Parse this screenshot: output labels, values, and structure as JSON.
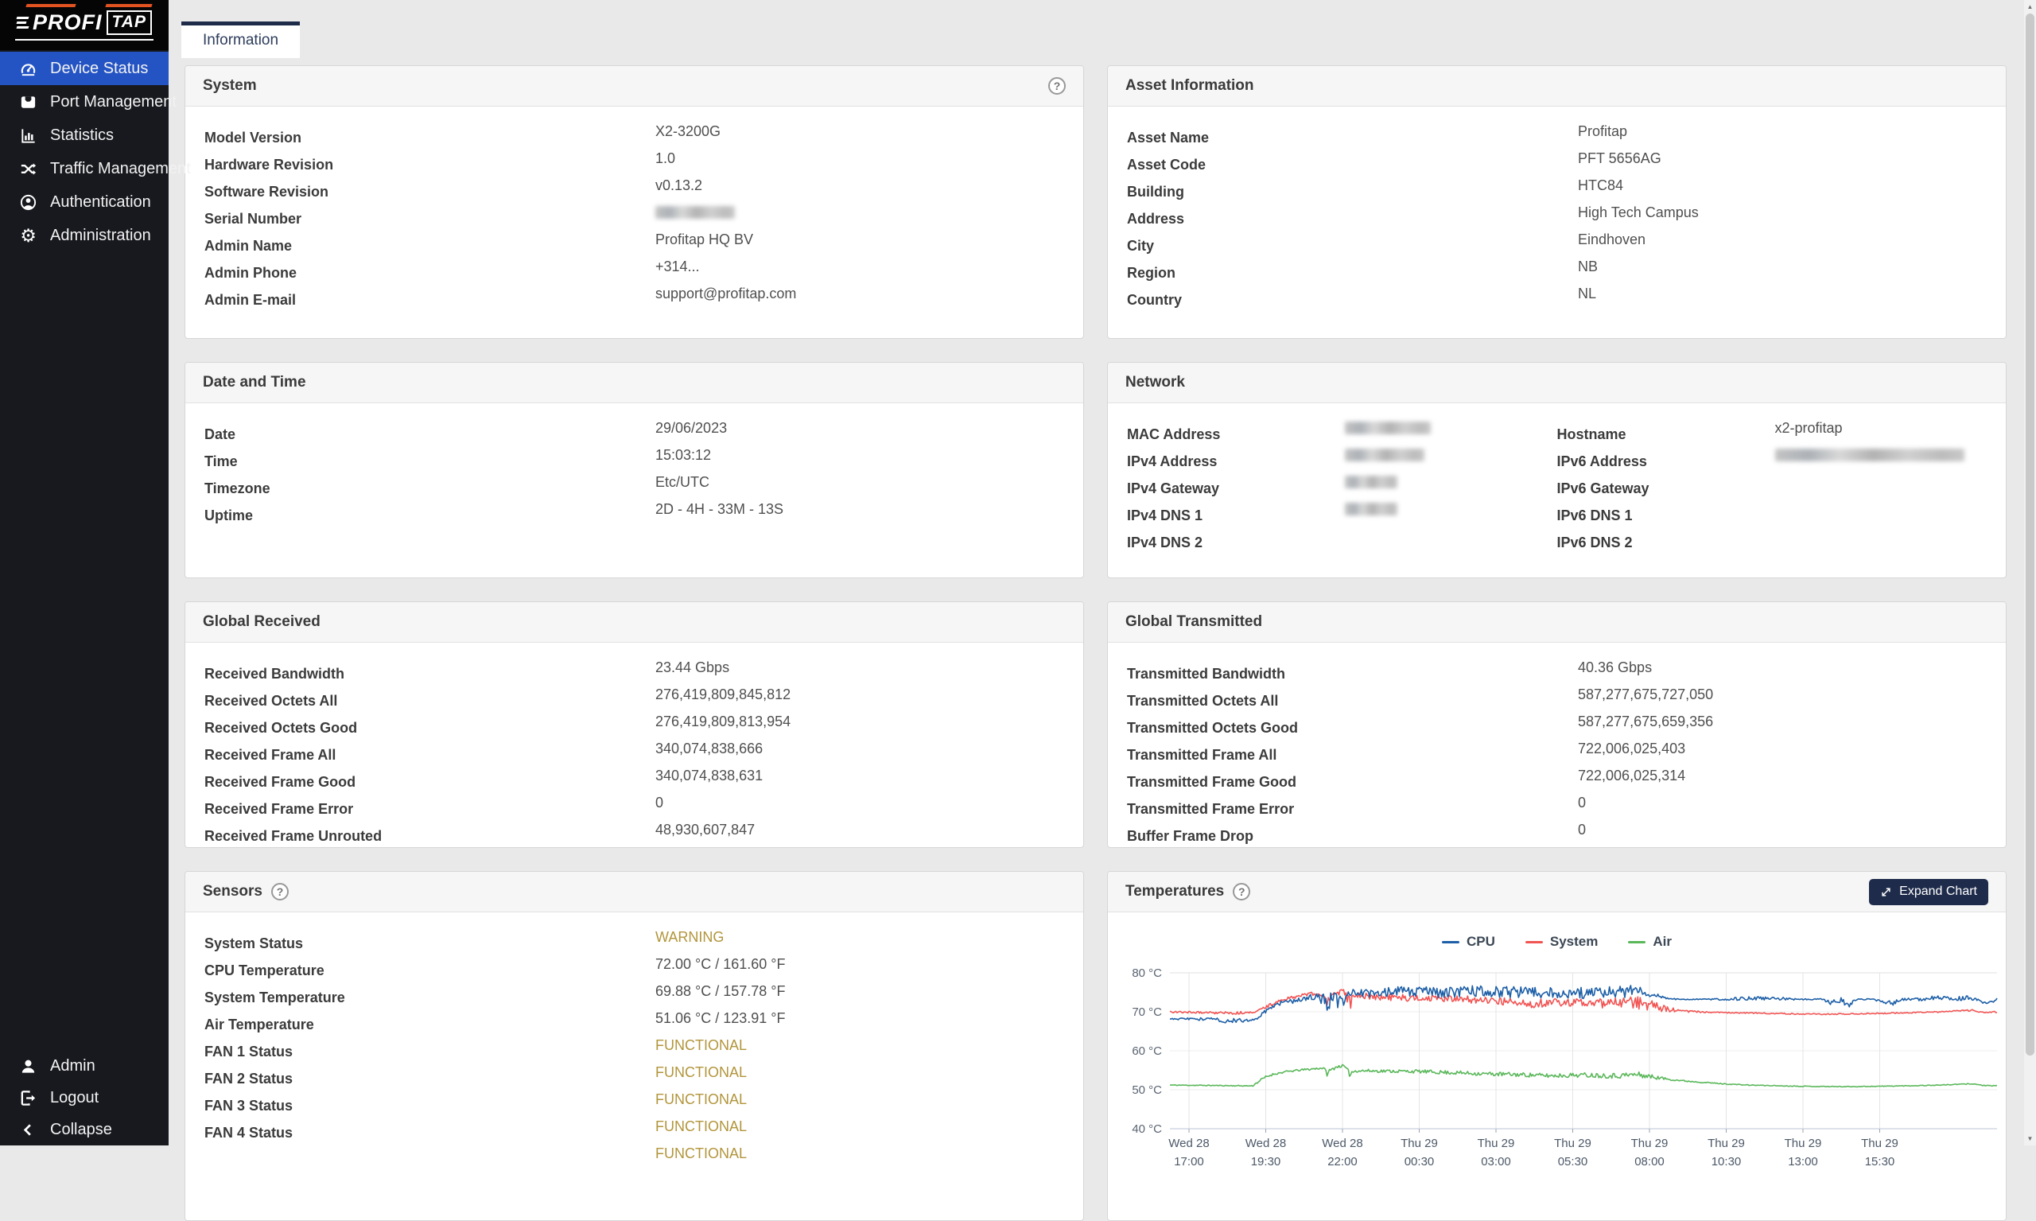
{
  "brand": {
    "name_left": "PROFI",
    "name_right": "TAP",
    "accent_color": "#e25322"
  },
  "sidebar": {
    "items": [
      {
        "label": "Device Status",
        "icon": "gauge-icon",
        "active": true
      },
      {
        "label": "Port Management",
        "icon": "port-icon",
        "active": false
      },
      {
        "label": "Statistics",
        "icon": "bar-chart-icon",
        "active": false
      },
      {
        "label": "Traffic Management",
        "icon": "shuffle-icon",
        "active": false
      },
      {
        "label": "Authentication",
        "icon": "user-circle-icon",
        "active": false
      },
      {
        "label": "Administration",
        "icon": "gear-icon",
        "active": false
      }
    ],
    "footer_items": [
      {
        "label": "Admin",
        "icon": "user-icon"
      },
      {
        "label": "Logout",
        "icon": "logout-icon"
      },
      {
        "label": "Collapse",
        "icon": "chevron-left-icon"
      }
    ]
  },
  "tabs": [
    {
      "label": "Information",
      "active": true
    }
  ],
  "cards": {
    "system": {
      "title": "System",
      "rows": [
        {
          "label": "Model Version",
          "value": "X2-3200G"
        },
        {
          "label": "Hardware Revision",
          "value": "1.0"
        },
        {
          "label": "Software Revision",
          "value": "v0.13.2"
        },
        {
          "label": "Serial Number",
          "value": "",
          "redacted": 100
        },
        {
          "label": "Admin Name",
          "value": "Profitap HQ BV"
        },
        {
          "label": "Admin Phone",
          "value": "+314..."
        },
        {
          "label": "Admin E-mail",
          "value": "support@profitap.com"
        }
      ]
    },
    "asset": {
      "title": "Asset Information",
      "rows": [
        {
          "label": "Asset Name",
          "value": "Profitap"
        },
        {
          "label": "Asset Code",
          "value": "PFT 5656AG"
        },
        {
          "label": "Building",
          "value": "HTC84"
        },
        {
          "label": "Address",
          "value": "High Tech Campus"
        },
        {
          "label": "City",
          "value": "Eindhoven"
        },
        {
          "label": "Region",
          "value": "NB"
        },
        {
          "label": "Country",
          "value": "NL"
        }
      ]
    },
    "datetime": {
      "title": "Date and Time",
      "rows": [
        {
          "label": "Date",
          "value": "29/06/2023"
        },
        {
          "label": "Time",
          "value": "15:03:12"
        },
        {
          "label": "Timezone",
          "value": "Etc/UTC"
        },
        {
          "label": "Uptime",
          "value": "2D - 4H - 33M - 13S"
        }
      ]
    },
    "network": {
      "title": "Network",
      "left_rows": [
        {
          "label": "MAC Address",
          "value": "",
          "redacted": 108
        },
        {
          "label": "IPv4 Address",
          "value": "",
          "redacted": 100
        },
        {
          "label": "IPv4 Gateway",
          "value": "",
          "redacted": 66
        },
        {
          "label": "IPv4 DNS 1",
          "value": "",
          "redacted": 66
        },
        {
          "label": "IPv4 DNS 2",
          "value": ""
        }
      ],
      "right_rows": [
        {
          "label": "Hostname",
          "value": "x2-profitap"
        },
        {
          "label": "IPv6 Address",
          "value": "",
          "redacted": 238
        },
        {
          "label": "IPv6 Gateway",
          "value": ""
        },
        {
          "label": "IPv6 DNS 1",
          "value": ""
        },
        {
          "label": "IPv6 DNS 2",
          "value": ""
        }
      ]
    },
    "global_received": {
      "title": "Global Received",
      "rows": [
        {
          "label": "Received Bandwidth",
          "value": "23.44 Gbps"
        },
        {
          "label": "Received Octets All",
          "value": "276,419,809,845,812"
        },
        {
          "label": "Received Octets Good",
          "value": "276,419,809,813,954"
        },
        {
          "label": "Received Frame All",
          "value": "340,074,838,666"
        },
        {
          "label": "Received Frame Good",
          "value": "340,074,838,631"
        },
        {
          "label": "Received Frame Error",
          "value": "0"
        },
        {
          "label": "Received Frame Unrouted",
          "value": "48,930,607,847"
        }
      ]
    },
    "global_transmitted": {
      "title": "Global Transmitted",
      "rows": [
        {
          "label": "Transmitted Bandwidth",
          "value": "40.36 Gbps"
        },
        {
          "label": "Transmitted Octets All",
          "value": "587,277,675,727,050"
        },
        {
          "label": "Transmitted Octets Good",
          "value": "587,277,675,659,356"
        },
        {
          "label": "Transmitted Frame All",
          "value": "722,006,025,403"
        },
        {
          "label": "Transmitted Frame Good",
          "value": "722,006,025,314"
        },
        {
          "label": "Transmitted Frame Error",
          "value": "0"
        },
        {
          "label": "Buffer Frame Drop",
          "value": "0"
        }
      ]
    },
    "sensors": {
      "title": "Sensors",
      "rows": [
        {
          "label": "System Status",
          "value": "WARNING",
          "status": true
        },
        {
          "label": "CPU Temperature",
          "value": "72.00 °C / 161.60 °F"
        },
        {
          "label": "System Temperature",
          "value": "69.88 °C / 157.78 °F"
        },
        {
          "label": "Air Temperature",
          "value": "51.06 °C / 123.91 °F"
        },
        {
          "label": "FAN 1 Status",
          "value": "FUNCTIONAL",
          "status": true
        },
        {
          "label": "FAN 2 Status",
          "value": "FUNCTIONAL",
          "status": true
        },
        {
          "label": "FAN 3 Status",
          "value": "FUNCTIONAL",
          "status": true
        },
        {
          "label": "FAN 4 Status",
          "value": "FUNCTIONAL",
          "status": true
        },
        {
          "label": "",
          "value": "FUNCTIONAL",
          "status": true
        }
      ]
    },
    "temperatures": {
      "title": "Temperatures",
      "expand_button": "Expand Chart"
    }
  },
  "status_color": "#b2953b",
  "chart_data": {
    "type": "line",
    "title": "Temperatures",
    "unit": "°C",
    "ylim": [
      40,
      80
    ],
    "yticks": [
      80,
      70,
      60,
      50,
      40
    ],
    "ytick_suffix": " °C",
    "grid": true,
    "legend_position": "top-center",
    "x_ticks": [
      {
        "day": "Wed 28",
        "time": "17:00"
      },
      {
        "day": "Wed 28",
        "time": "19:30"
      },
      {
        "day": "Wed 28",
        "time": "22:00"
      },
      {
        "day": "Thu 29",
        "time": "00:30"
      },
      {
        "day": "Thu 29",
        "time": "03:00"
      },
      {
        "day": "Thu 29",
        "time": "05:30"
      },
      {
        "day": "Thu 29",
        "time": "08:00"
      },
      {
        "day": "Thu 29",
        "time": "10:30"
      },
      {
        "day": "Thu 29",
        "time": "13:00"
      },
      {
        "day": "Thu 29",
        "time": "15:30"
      }
    ],
    "series": [
      {
        "name": "Air",
        "color": "#5ab75a",
        "keypoints": [
          [
            0,
            51.2,
            0.12
          ],
          [
            0.05,
            51.1,
            0.12
          ],
          [
            0.09,
            51.0,
            0.12
          ],
          [
            0.1,
            51.0,
            0.15
          ],
          [
            0.105,
            51.8,
            0.3
          ],
          [
            0.115,
            53.2,
            0.3
          ],
          [
            0.125,
            54.0,
            0.25
          ],
          [
            0.14,
            54.6,
            0.25
          ],
          [
            0.155,
            55.0,
            0.25
          ],
          [
            0.17,
            55.3,
            0.3
          ],
          [
            0.185,
            55.6,
            0.3
          ],
          [
            0.19,
            54.3,
            0.8
          ],
          [
            0.2,
            55.8,
            0.4
          ],
          [
            0.21,
            56.2,
            0.3
          ],
          [
            0.216,
            54.2,
            1.0
          ],
          [
            0.225,
            54.9,
            0.4
          ],
          [
            0.26,
            54.8,
            0.4
          ],
          [
            0.3,
            54.7,
            0.45
          ],
          [
            0.34,
            54.4,
            0.5
          ],
          [
            0.38,
            54.1,
            0.5
          ],
          [
            0.42,
            53.9,
            0.55
          ],
          [
            0.46,
            53.6,
            0.55
          ],
          [
            0.5,
            53.8,
            0.6
          ],
          [
            0.54,
            53.6,
            0.7
          ],
          [
            0.565,
            53.9,
            0.8
          ],
          [
            0.58,
            53.4,
            0.6
          ],
          [
            0.6,
            52.8,
            0.3
          ],
          [
            0.62,
            52.3,
            0.2
          ],
          [
            0.645,
            51.9,
            0.15
          ],
          [
            0.67,
            51.5,
            0.12
          ],
          [
            0.7,
            51.2,
            0.1
          ],
          [
            0.74,
            51.0,
            0.1
          ],
          [
            0.78,
            50.85,
            0.1
          ],
          [
            0.82,
            50.8,
            0.1
          ],
          [
            0.86,
            50.9,
            0.1
          ],
          [
            0.9,
            51.05,
            0.1
          ],
          [
            0.93,
            51.2,
            0.1
          ],
          [
            0.955,
            51.4,
            0.12
          ],
          [
            0.97,
            51.55,
            0.12
          ],
          [
            0.98,
            51.2,
            0.15
          ],
          [
            0.99,
            51.0,
            0.12
          ],
          [
            1,
            51.0,
            0.12
          ]
        ]
      },
      {
        "name": "System",
        "color": "#f15453",
        "keypoints": [
          [
            0,
            70.0,
            0.25
          ],
          [
            0.05,
            69.8,
            0.3
          ],
          [
            0.08,
            69.7,
            0.35
          ],
          [
            0.1,
            69.9,
            0.3
          ],
          [
            0.115,
            71.0,
            0.4
          ],
          [
            0.125,
            72.2,
            0.4
          ],
          [
            0.14,
            73.3,
            0.4
          ],
          [
            0.155,
            74.0,
            0.4
          ],
          [
            0.17,
            74.5,
            0.5
          ],
          [
            0.18,
            74.8,
            0.5
          ],
          [
            0.19,
            73.0,
            1.5
          ],
          [
            0.2,
            74.9,
            0.7
          ],
          [
            0.21,
            75.1,
            0.7
          ],
          [
            0.218,
            72.0,
            2.0
          ],
          [
            0.225,
            74.2,
            0.8
          ],
          [
            0.25,
            73.8,
            0.8
          ],
          [
            0.3,
            73.5,
            0.9
          ],
          [
            0.35,
            73.2,
            1.0
          ],
          [
            0.4,
            72.8,
            1.0
          ],
          [
            0.44,
            72.2,
            1.2
          ],
          [
            0.48,
            72.4,
            1.1
          ],
          [
            0.52,
            72.2,
            1.2
          ],
          [
            0.56,
            72.4,
            1.5
          ],
          [
            0.575,
            72.0,
            1.8
          ],
          [
            0.59,
            71.2,
            1.2
          ],
          [
            0.605,
            70.6,
            0.6
          ],
          [
            0.62,
            70.2,
            0.3
          ],
          [
            0.64,
            70.0,
            0.2
          ],
          [
            0.67,
            69.8,
            0.15
          ],
          [
            0.7,
            69.7,
            0.15
          ],
          [
            0.73,
            69.6,
            0.15
          ],
          [
            0.76,
            69.4,
            0.15
          ],
          [
            0.8,
            69.4,
            0.15
          ],
          [
            0.84,
            69.5,
            0.15
          ],
          [
            0.88,
            69.7,
            0.15
          ],
          [
            0.92,
            69.9,
            0.15
          ],
          [
            0.945,
            70.1,
            0.2
          ],
          [
            0.96,
            70.3,
            0.2
          ],
          [
            0.97,
            70.4,
            0.2
          ],
          [
            0.98,
            69.9,
            0.2
          ],
          [
            0.99,
            69.8,
            0.2
          ],
          [
            1,
            70.0,
            0.2
          ]
        ]
      },
      {
        "name": "CPU",
        "color": "#1d5fa7",
        "keypoints": [
          [
            0,
            68.2,
            0.25
          ],
          [
            0.05,
            68.1,
            0.35
          ],
          [
            0.07,
            67.6,
            0.6
          ],
          [
            0.095,
            67.9,
            0.6
          ],
          [
            0.105,
            68.3,
            0.3
          ],
          [
            0.115,
            70.0,
            0.5
          ],
          [
            0.125,
            71.3,
            0.4
          ],
          [
            0.135,
            72.3,
            0.5
          ],
          [
            0.15,
            72.8,
            0.6
          ],
          [
            0.165,
            73.5,
            0.7
          ],
          [
            0.18,
            74.0,
            1.2
          ],
          [
            0.19,
            72.0,
            2.2
          ],
          [
            0.2,
            74.6,
            1.1
          ],
          [
            0.205,
            71.5,
            2.5
          ],
          [
            0.215,
            75.0,
            1.0
          ],
          [
            0.23,
            74.8,
            1.3
          ],
          [
            0.27,
            75.2,
            1.3
          ],
          [
            0.32,
            75.0,
            1.5
          ],
          [
            0.37,
            75.3,
            1.4
          ],
          [
            0.42,
            75.0,
            1.5
          ],
          [
            0.47,
            74.8,
            1.5
          ],
          [
            0.52,
            75.0,
            1.6
          ],
          [
            0.555,
            75.2,
            1.5
          ],
          [
            0.565,
            76.0,
            1.0
          ],
          [
            0.575,
            74.8,
            0.8
          ],
          [
            0.59,
            74.2,
            0.5
          ],
          [
            0.6,
            73.6,
            0.3
          ],
          [
            0.615,
            73.2,
            0.15
          ],
          [
            0.63,
            73.2,
            0.15
          ],
          [
            0.66,
            73.2,
            0.2
          ],
          [
            0.69,
            73.3,
            0.5
          ],
          [
            0.72,
            73.5,
            0.5
          ],
          [
            0.745,
            73.3,
            0.5
          ],
          [
            0.76,
            73.2,
            0.15
          ],
          [
            0.79,
            73.2,
            0.2
          ],
          [
            0.8,
            72.0,
            1.0
          ],
          [
            0.81,
            73.0,
            0.8
          ],
          [
            0.82,
            71.8,
            0.9
          ],
          [
            0.83,
            73.2,
            0.3
          ],
          [
            0.85,
            73.2,
            0.15
          ],
          [
            0.875,
            72.2,
            0.8
          ],
          [
            0.885,
            73.2,
            0.3
          ],
          [
            0.91,
            73.2,
            0.4
          ],
          [
            0.925,
            73.6,
            0.6
          ],
          [
            0.95,
            73.4,
            0.6
          ],
          [
            0.965,
            73.6,
            0.5
          ],
          [
            0.975,
            73.2,
            0.3
          ],
          [
            0.985,
            72.2,
            0.3
          ],
          [
            0.995,
            72.6,
            0.3
          ],
          [
            1,
            73.4,
            0.2
          ]
        ]
      }
    ],
    "legend_order": [
      "CPU",
      "System",
      "Air"
    ]
  },
  "scrollbar": {
    "up_glyph": "▲",
    "down_glyph": "▼"
  }
}
